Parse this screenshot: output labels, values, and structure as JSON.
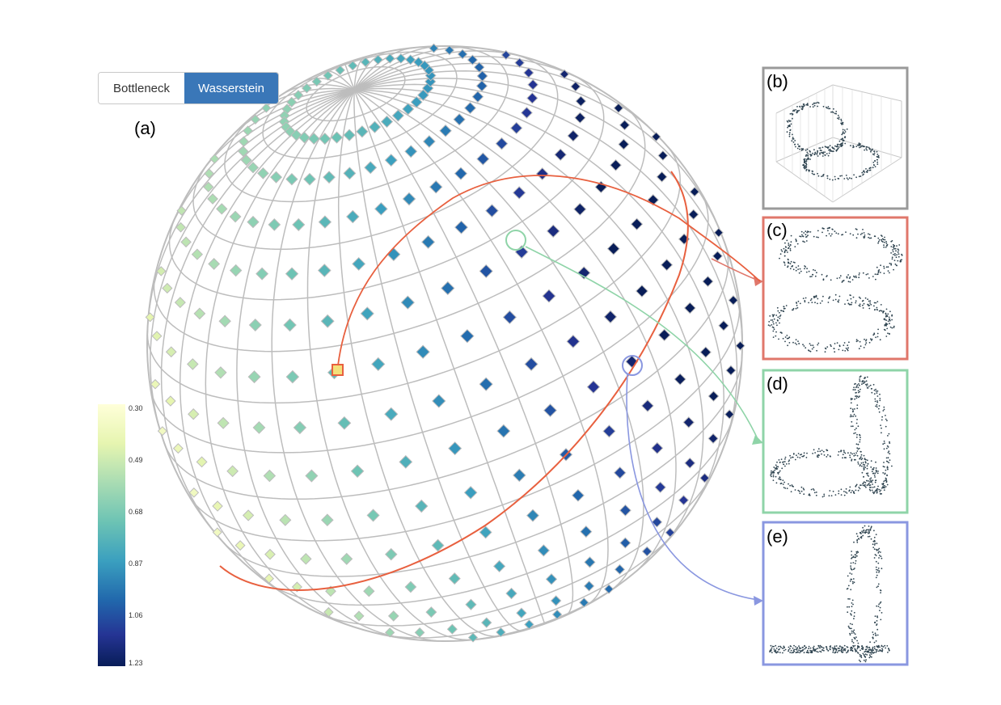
{
  "metric_toggle": {
    "options": [
      "Bottleneck",
      "Wasserstein"
    ],
    "selected": "Wasserstein"
  },
  "labels": {
    "a": "(a)",
    "b": "(b)",
    "c": "(c)",
    "d": "(d)",
    "e": "(e)"
  },
  "colorbar": {
    "ticks": [
      "0.30",
      "0.49",
      "0.68",
      "0.87",
      "1.06",
      "1.23"
    ],
    "colormap": "YlGnBu"
  },
  "colors": {
    "panel_b_border": "#9a9a9a",
    "panel_c_border": "#e0776b",
    "panel_d_border": "#8fd4a8",
    "panel_e_border": "#8a97e0",
    "great_circle": "#e8603f",
    "toggle_active": "#3a77b8",
    "grid": "#bdbdbd"
  }
}
